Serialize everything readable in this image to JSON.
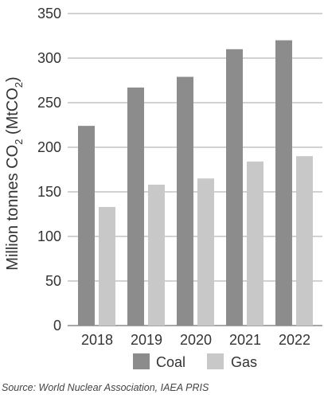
{
  "chart_data": {
    "type": "bar",
    "categories": [
      "2018",
      "2019",
      "2020",
      "2021",
      "2022"
    ],
    "series": [
      {
        "name": "Coal",
        "values": [
          224,
          267,
          279,
          310,
          320
        ],
        "color": "#8c8c8c"
      },
      {
        "name": "Gas",
        "values": [
          133,
          158,
          165,
          184,
          190
        ],
        "color": "#c8c8c8"
      }
    ],
    "ylabel_main": "Million tonnes CO",
    "ylabel_sub": "2",
    "ylabel_unit_open": " (MtCO",
    "ylabel_unit_sub": "2",
    "ylabel_unit_close": ")",
    "ylim": [
      0,
      350
    ],
    "yticks": [
      0,
      50,
      100,
      150,
      200,
      250,
      300,
      350
    ],
    "grid": true,
    "legend_position": "bottom"
  },
  "source": "Source: World Nuclear Association, IAEA PRIS",
  "colors": {
    "gridline": "#a6a6a6",
    "text": "#333333"
  }
}
